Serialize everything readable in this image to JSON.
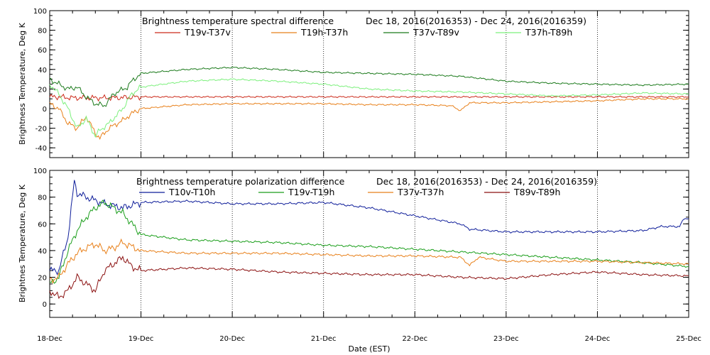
{
  "chart_data": [
    {
      "type": "line",
      "title": "Brightness temperature spectral difference",
      "date_range": "Dec 18, 2016(2016353) - Dec 24, 2016(2016359)",
      "ylabel": "Brightness Temperature, Deg K",
      "ylim": [
        -50,
        100
      ],
      "yticks": [
        "100",
        "80",
        "60",
        "40",
        "20",
        "0",
        "-20",
        "-40"
      ],
      "xlim": [
        0,
        7
      ],
      "xticks": [
        "18-Dec",
        "19-Dec",
        "20-Dec",
        "21-Dec",
        "22-Dec",
        "23-Dec",
        "24-Dec",
        "25-Dec"
      ],
      "grid": "vertical dotted lines at day boundaries",
      "legend": "top, inside plot, horizontal",
      "series": [
        {
          "name": "T19v-T37v",
          "color": "#cc2a1a",
          "x": [
            0,
            0.1,
            0.25,
            0.35,
            0.5,
            0.7,
            1,
            1.5,
            2,
            2.5,
            3,
            3.5,
            4,
            4.5,
            5,
            5.5,
            6,
            6.5,
            7
          ],
          "y": [
            12,
            12,
            11,
            11,
            11,
            11,
            12,
            12,
            12,
            12,
            12,
            12,
            12,
            12,
            12,
            12,
            12,
            12,
            12
          ]
        },
        {
          "name": "T19h-T37h",
          "color": "#e8801a",
          "x": [
            0,
            0.1,
            0.2,
            0.3,
            0.4,
            0.5,
            0.55,
            0.65,
            0.8,
            0.9,
            1,
            1.5,
            2,
            2.5,
            3,
            3.5,
            4,
            4.4,
            4.5,
            4.6,
            5,
            5.5,
            6,
            6.5,
            7
          ],
          "y": [
            5,
            0,
            -15,
            -20,
            -8,
            -25,
            -30,
            -20,
            -12,
            -5,
            0,
            4,
            5,
            5,
            5,
            4,
            4,
            3,
            -2,
            6,
            6,
            7,
            8,
            10,
            10
          ]
        },
        {
          "name": "T37v-T89v",
          "color": "#1b7a1b",
          "x": [
            0,
            0.1,
            0.2,
            0.3,
            0.4,
            0.5,
            0.6,
            0.7,
            0.85,
            0.9,
            1,
            1.5,
            2,
            2.5,
            3,
            3.5,
            4,
            4.5,
            5,
            5.5,
            6,
            6.5,
            7
          ],
          "y": [
            30,
            25,
            20,
            22,
            12,
            5,
            3,
            15,
            22,
            28,
            36,
            40,
            42,
            40,
            37,
            36,
            35,
            33,
            28,
            26,
            25,
            24,
            25
          ]
        },
        {
          "name": "T37h-T89h",
          "color": "#7cf07c",
          "x": [
            0,
            0.1,
            0.2,
            0.3,
            0.4,
            0.5,
            0.55,
            0.65,
            0.8,
            0.9,
            1,
            1.5,
            2,
            2.5,
            3,
            3.5,
            4,
            4.5,
            5,
            5.5,
            6,
            6.5,
            7
          ],
          "y": [
            25,
            15,
            0,
            -20,
            -10,
            -28,
            -22,
            -15,
            0,
            15,
            22,
            28,
            30,
            28,
            25,
            20,
            18,
            17,
            15,
            13,
            14,
            16,
            15
          ]
        }
      ]
    },
    {
      "type": "line",
      "title": "Brightness temperature polarization difference",
      "date_range": "Dec 18, 2016(2016353) - Dec 24, 2016(2016359)",
      "ylabel": "Brightnes Temperature, Deg K",
      "xlabel": "Date (EST)",
      "ylim": [
        -10,
        100
      ],
      "yticks": [
        "100",
        "80",
        "60",
        "40",
        "20",
        "0"
      ],
      "xlim": [
        0,
        7
      ],
      "xticks": [
        "18-Dec",
        "19-Dec",
        "20-Dec",
        "21-Dec",
        "22-Dec",
        "23-Dec",
        "24-Dec",
        "25-Dec"
      ],
      "grid": "vertical dotted lines at day boundaries",
      "legend": "top, inside plot, horizontal",
      "series": [
        {
          "name": "T10v-T10h",
          "color": "#0f1e9a",
          "x": [
            0,
            0.1,
            0.2,
            0.27,
            0.3,
            0.4,
            0.6,
            0.8,
            1,
            1.5,
            2,
            2.5,
            3,
            3.5,
            4,
            4.5,
            4.6,
            5,
            5.5,
            6,
            6.5,
            6.7,
            6.9,
            6.95,
            7
          ],
          "y": [
            25,
            25,
            50,
            92,
            83,
            80,
            75,
            72,
            76,
            77,
            75,
            75,
            76,
            72,
            66,
            60,
            56,
            54,
            54,
            54,
            55,
            58,
            58,
            64,
            64
          ]
        },
        {
          "name": "T19v-T19h",
          "color": "#1a9e1a",
          "x": [
            0,
            0.1,
            0.2,
            0.3,
            0.4,
            0.5,
            0.6,
            0.7,
            0.8,
            0.9,
            1,
            1.5,
            2,
            2.5,
            3,
            3.5,
            4,
            4.5,
            5,
            5.5,
            6,
            6.5,
            7
          ],
          "y": [
            15,
            20,
            40,
            55,
            65,
            72,
            76,
            72,
            68,
            60,
            52,
            48,
            47,
            46,
            44,
            43,
            41,
            39,
            37,
            35,
            33,
            31,
            28
          ]
        },
        {
          "name": "T37v-T37h",
          "color": "#e8801a",
          "x": [
            0,
            0.1,
            0.2,
            0.3,
            0.4,
            0.5,
            0.6,
            0.7,
            0.8,
            1,
            1.5,
            2,
            2.5,
            3,
            3.5,
            4,
            4.5,
            4.6,
            4.7,
            5,
            5.5,
            6,
            6.5,
            7
          ],
          "y": [
            18,
            20,
            30,
            38,
            42,
            45,
            40,
            42,
            46,
            40,
            38,
            38,
            38,
            37,
            36,
            36,
            35,
            29,
            35,
            32,
            32,
            32,
            31,
            30
          ]
        },
        {
          "name": "T89v-T89h",
          "color": "#8b1010",
          "x": [
            0,
            0.1,
            0.2,
            0.3,
            0.4,
            0.5,
            0.6,
            0.7,
            0.8,
            0.9,
            1,
            1.5,
            2,
            2.5,
            3,
            3.5,
            4,
            4.5,
            5,
            5.5,
            6,
            6.5,
            7
          ],
          "y": [
            10,
            5,
            10,
            20,
            15,
            10,
            25,
            30,
            35,
            28,
            25,
            27,
            26,
            24,
            23,
            22,
            22,
            20,
            19,
            22,
            24,
            22,
            21
          ]
        }
      ]
    }
  ]
}
